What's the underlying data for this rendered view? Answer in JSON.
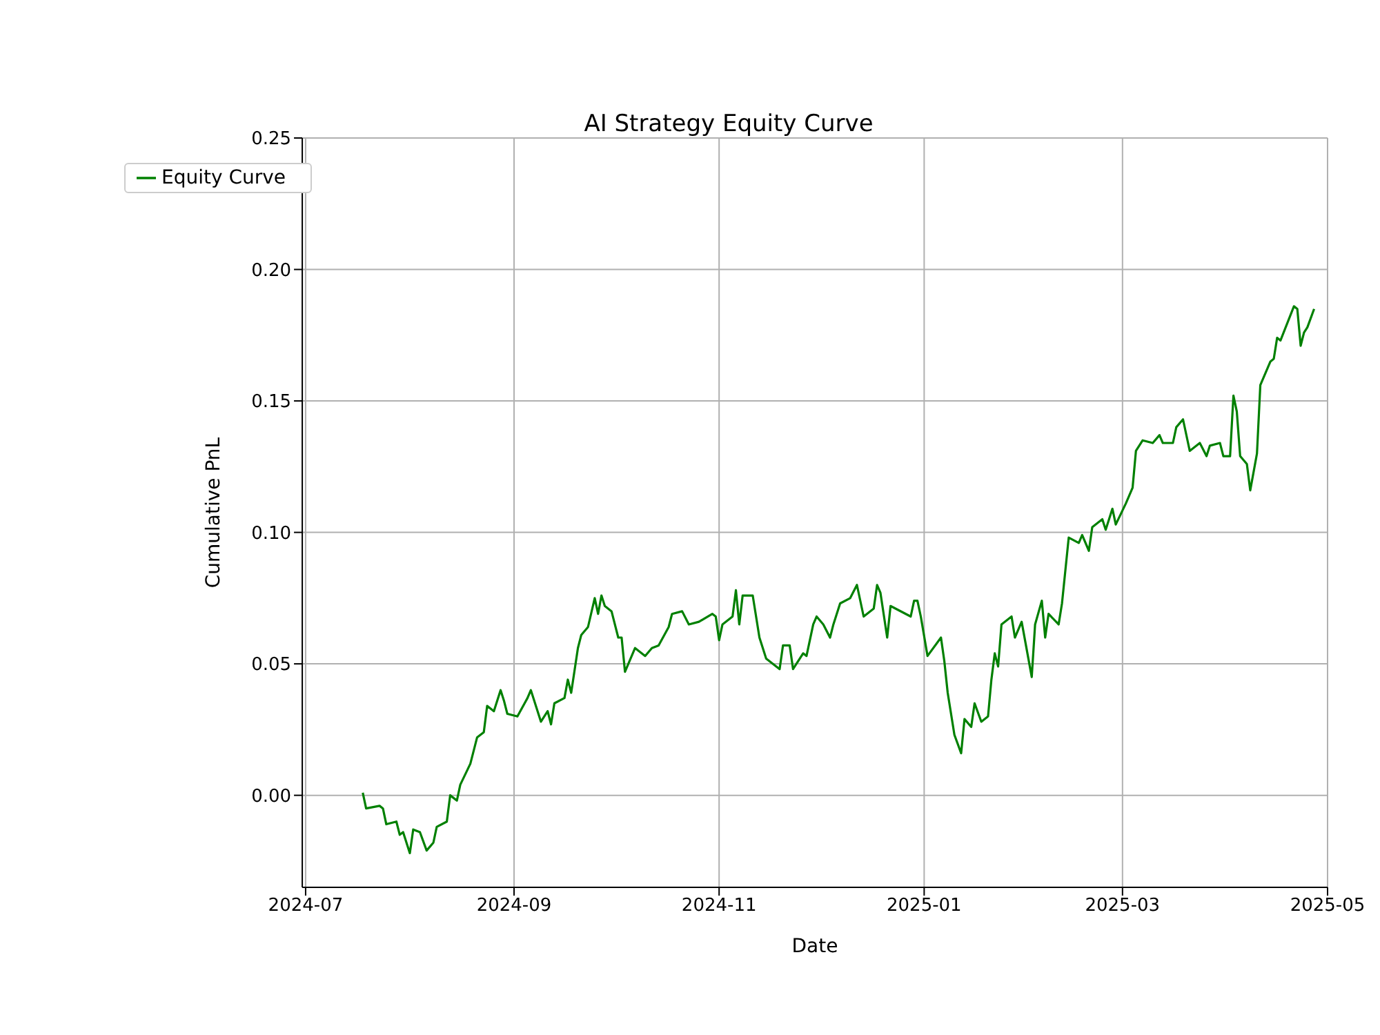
{
  "chart_data": {
    "type": "line",
    "title": "AI Strategy Equity Curve",
    "xlabel": "Date",
    "ylabel": "Cumulative PnL",
    "xlim": [
      "2024-06-30",
      "2025-05"
    ],
    "xticks": [
      "2024-07",
      "2024-09",
      "2024-11",
      "2025-01",
      "2025-03",
      "2025-05"
    ],
    "ylim": [
      -0.035,
      0.25
    ],
    "yticks": [
      {
        "value": 0,
        "label": "0.00"
      },
      {
        "value": 0.05,
        "label": "0.05"
      },
      {
        "value": 0.1,
        "label": "0.10"
      },
      {
        "value": 0.15,
        "label": "0.15"
      },
      {
        "value": 0.2,
        "label": "0.20"
      },
      {
        "value": 0.25,
        "label": "0.25"
      }
    ],
    "grid": true,
    "legend": "top left",
    "marker": "none",
    "line_style": "solid",
    "x": [
      "2024-07-18",
      "2024-07-19",
      "2024-07-23",
      "2024-07-24",
      "2024-07-25",
      "2024-07-28",
      "2024-07-29",
      "2024-07-30",
      "2024-08-01",
      "2024-08-02",
      "2024-08-04",
      "2024-08-06",
      "2024-08-08",
      "2024-08-09",
      "2024-08-12",
      "2024-08-13",
      "2024-08-15",
      "2024-08-16",
      "2024-08-19",
      "2024-08-21",
      "2024-08-23",
      "2024-08-24",
      "2024-08-26",
      "2024-08-28",
      "2024-08-29",
      "2024-08-30",
      "2024-09-02",
      "2024-09-05",
      "2024-09-06",
      "2024-09-09",
      "2024-09-11",
      "2024-09-12",
      "2024-09-13",
      "2024-09-16",
      "2024-09-17",
      "2024-09-18",
      "2024-09-20",
      "2024-09-21",
      "2024-09-23",
      "2024-09-25",
      "2024-09-26",
      "2024-09-27",
      "2024-09-28",
      "2024-09-30",
      "2024-10-02",
      "2024-10-03",
      "2024-10-04",
      "2024-10-07",
      "2024-10-10",
      "2024-10-12",
      "2024-10-14",
      "2024-10-17",
      "2024-10-18",
      "2024-10-21",
      "2024-10-23",
      "2024-10-26",
      "2024-10-30",
      "2024-10-31",
      "2024-11-01",
      "2024-11-02",
      "2024-11-05",
      "2024-11-06",
      "2024-11-07",
      "2024-11-08",
      "2024-11-11",
      "2024-11-13",
      "2024-11-15",
      "2024-11-19",
      "2024-11-20",
      "2024-11-22",
      "2024-11-23",
      "2024-11-26",
      "2024-11-27",
      "2024-11-29",
      "2024-11-30",
      "2024-12-02",
      "2024-12-04",
      "2024-12-05",
      "2024-12-07",
      "2024-12-10",
      "2024-12-12",
      "2024-12-14",
      "2024-12-17",
      "2024-12-18",
      "2024-12-19",
      "2024-12-21",
      "2024-12-22",
      "2024-12-28",
      "2024-12-29",
      "2024-12-30",
      "2024-12-31",
      "2025-01-02",
      "2025-01-06",
      "2025-01-07",
      "2025-01-08",
      "2025-01-10",
      "2025-01-12",
      "2025-01-13",
      "2025-01-15",
      "2025-01-16",
      "2025-01-18",
      "2025-01-20",
      "2025-01-21",
      "2025-01-22",
      "2025-01-23",
      "2025-01-24",
      "2025-01-27",
      "2025-01-28",
      "2025-01-30",
      "2025-02-02",
      "2025-02-03",
      "2025-02-05",
      "2025-02-06",
      "2025-02-07",
      "2025-02-10",
      "2025-02-11",
      "2025-02-13",
      "2025-02-16",
      "2025-02-17",
      "2025-02-19",
      "2025-02-20",
      "2025-02-23",
      "2025-02-24",
      "2025-02-26",
      "2025-02-27",
      "2025-03-02",
      "2025-03-04",
      "2025-03-05",
      "2025-03-07",
      "2025-03-10",
      "2025-03-12",
      "2025-03-13",
      "2025-03-16",
      "2025-03-17",
      "2025-03-19",
      "2025-03-21",
      "2025-03-24",
      "2025-03-26",
      "2025-03-27",
      "2025-03-30",
      "2025-03-31",
      "2025-04-02",
      "2025-04-03",
      "2025-04-04",
      "2025-04-05",
      "2025-04-07",
      "2025-04-08",
      "2025-04-10",
      "2025-04-11",
      "2025-04-14",
      "2025-04-15",
      "2025-04-16",
      "2025-04-17",
      "2025-04-21",
      "2025-04-22",
      "2025-04-23",
      "2025-04-24",
      "2025-04-25",
      "2025-04-27"
    ],
    "series": [
      {
        "name": "Equity Curve",
        "color": "#008000",
        "values": [
          0.001,
          -0.005,
          -0.004,
          -0.005,
          -0.011,
          -0.01,
          -0.015,
          -0.014,
          -0.022,
          -0.013,
          -0.014,
          -0.021,
          -0.018,
          -0.012,
          -0.01,
          0.0,
          -0.002,
          0.004,
          0.012,
          0.022,
          0.024,
          0.034,
          0.032,
          0.04,
          0.036,
          0.031,
          0.03,
          0.037,
          0.04,
          0.028,
          0.032,
          0.027,
          0.035,
          0.037,
          0.044,
          0.039,
          0.056,
          0.061,
          0.064,
          0.075,
          0.069,
          0.076,
          0.072,
          0.07,
          0.06,
          0.06,
          0.047,
          0.056,
          0.053,
          0.056,
          0.057,
          0.064,
          0.069,
          0.07,
          0.065,
          0.066,
          0.069,
          0.068,
          0.059,
          0.065,
          0.068,
          0.078,
          0.065,
          0.076,
          0.076,
          0.06,
          0.052,
          0.048,
          0.057,
          0.057,
          0.048,
          0.054,
          0.053,
          0.065,
          0.068,
          0.065,
          0.06,
          0.065,
          0.073,
          0.075,
          0.08,
          0.068,
          0.071,
          0.08,
          0.077,
          0.06,
          0.072,
          0.068,
          0.074,
          0.074,
          0.068,
          0.053,
          0.06,
          0.051,
          0.039,
          0.023,
          0.016,
          0.029,
          0.026,
          0.035,
          0.028,
          0.03,
          0.044,
          0.054,
          0.049,
          0.065,
          0.068,
          0.06,
          0.066,
          0.045,
          0.065,
          0.074,
          0.06,
          0.069,
          0.065,
          0.073,
          0.098,
          0.096,
          0.099,
          0.093,
          0.102,
          0.105,
          0.101,
          0.109,
          0.103,
          0.111,
          0.117,
          0.131,
          0.135,
          0.134,
          0.137,
          0.134,
          0.134,
          0.14,
          0.143,
          0.131,
          0.134,
          0.129,
          0.133,
          0.134,
          0.129,
          0.129,
          0.152,
          0.146,
          0.129,
          0.126,
          0.116,
          0.13,
          0.156,
          0.165,
          0.166,
          0.174,
          0.173,
          0.186,
          0.185,
          0.171,
          0.176,
          0.178,
          0.185
        ]
      }
    ]
  }
}
